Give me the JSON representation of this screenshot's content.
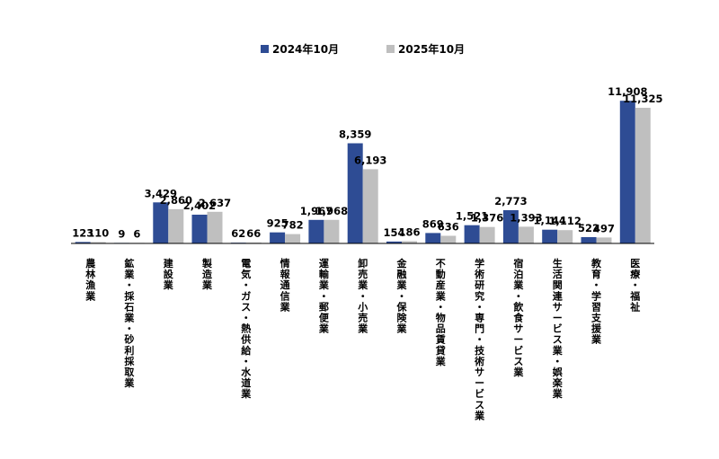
{
  "chart_data": {
    "type": "bar",
    "title": "",
    "xlabel": "",
    "ylabel": "",
    "ylim": [
      0,
      12600
    ],
    "grid": false,
    "legend_position": "top",
    "categories": [
      "農林漁業",
      "鉱業・採石業・砂利採取業",
      "建設業",
      "製造業",
      "電気・ガス・熱供給・水道業",
      "情報通信業",
      "運輸業・郵便業",
      "卸売業・小売業",
      "金融業・保険業",
      "不動産業・物品賃貸業",
      "学術研究・専門・技術サービス業",
      "宿泊業・飲食サービス業",
      "生活関連サービス業・娯楽業",
      "教育・学習支援業",
      "医療・福祉"
    ],
    "series": [
      {
        "name": "2024年10月",
        "color": "#2E4C94",
        "values": [
          123,
          9,
          3429,
          2402,
          62,
          925,
          1967,
          8359,
          154,
          869,
          1521,
          2773,
          1144,
          522,
          11908
        ],
        "labels": [
          "123",
          "9",
          "3,429",
          "2,402",
          "62",
          "925",
          "1,967",
          "8,359",
          "154",
          "869",
          "1,521",
          "2,773",
          "1,144",
          "522",
          "11,908"
        ]
      },
      {
        "name": "2025年10月",
        "color": "#BFBFBF",
        "values": [
          110,
          6,
          2860,
          2637,
          66,
          782,
          1968,
          6193,
          186,
          636,
          1376,
          1393,
          1112,
          497,
          11325
        ],
        "labels": [
          "110",
          "6",
          "2,860",
          "2,637",
          "66",
          "782",
          "1,968",
          "6,193",
          "186",
          "636",
          "1,376",
          "1,393",
          "1,112",
          "497",
          "11,325"
        ]
      }
    ]
  }
}
